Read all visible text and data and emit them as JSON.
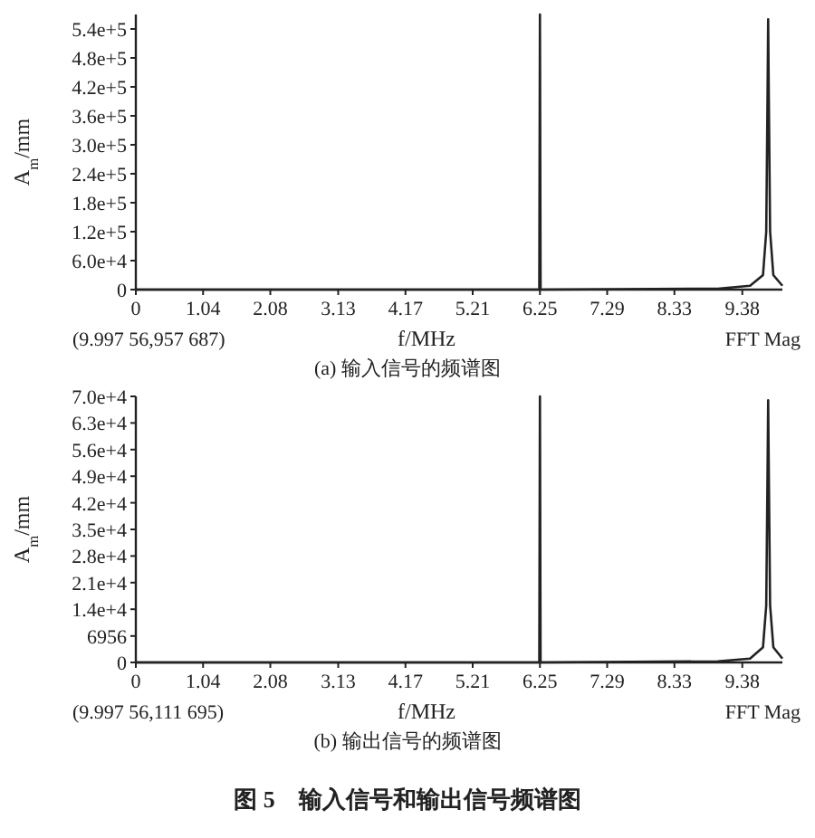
{
  "chart_data": [
    {
      "type": "line",
      "title": "(a) 输入信号的频谱图",
      "xlabel": "f/MHz",
      "ylabel": "A$_{m}$/mm",
      "annotations": [
        "(9.997 56,957 687)",
        "FFT Mag"
      ],
      "xlim": [
        0,
        10
      ],
      "xticks": [
        0,
        1.04,
        2.08,
        3.13,
        4.17,
        5.21,
        6.25,
        7.29,
        8.33,
        9.38
      ],
      "ylim": [
        0,
        570000
      ],
      "yticks": [
        {
          "value": 0,
          "label": "0"
        },
        {
          "value": 60000,
          "label": "6.0e+4"
        },
        {
          "value": 120000,
          "label": "1.2e+5"
        },
        {
          "value": 180000,
          "label": "1.8e+5"
        },
        {
          "value": 240000,
          "label": "2.4e+5"
        },
        {
          "value": 300000,
          "label": "3.0e+5"
        },
        {
          "value": 360000,
          "label": "3.6e+5"
        },
        {
          "value": 420000,
          "label": "4.2e+5"
        },
        {
          "value": 480000,
          "label": "4.8e+5"
        },
        {
          "value": 540000,
          "label": "5.4e+5"
        }
      ],
      "grid": false,
      "marker": "none",
      "line_style": "solid",
      "series": [
        {
          "color": "#222222",
          "x": [
            0,
            3,
            6.24,
            6.25,
            6.26,
            9,
            9.5,
            9.7,
            9.75,
            9.77,
            9.78,
            9.79,
            9.81,
            9.86,
            10
          ],
          "values": [
            0,
            0,
            0,
            570000,
            0,
            2000,
            8000,
            30000,
            120000,
            400000,
            560000,
            400000,
            120000,
            30000,
            8000
          ]
        }
      ]
    },
    {
      "type": "line",
      "title": "(b) 输出信号的频谱图",
      "xlabel": "f/MHz",
      "ylabel": "A$_{m}$/mm",
      "annotations": [
        "(9.997 56,111 695)",
        "FFT Mag",
        "图 5　输入信号和输出信号频谱图"
      ],
      "xlim": [
        0,
        10
      ],
      "xticks": [
        0,
        1.04,
        2.08,
        3.13,
        4.17,
        5.21,
        6.25,
        7.29,
        8.33,
        9.38
      ],
      "ylim": [
        0,
        70000
      ],
      "yticks": [
        {
          "value": 0,
          "label": "0"
        },
        6956,
        {
          "value": 14000,
          "label": "1.4e+4"
        },
        {
          "value": 21000,
          "label": "2.1e+4"
        },
        {
          "value": 28000,
          "label": "2.8e+4"
        },
        {
          "value": 35000,
          "label": "3.5e+4"
        },
        {
          "value": 42000,
          "label": "4.2e+4"
        },
        {
          "value": 49000,
          "label": "4.9e+4"
        },
        {
          "value": 56000,
          "label": "5.6e+4"
        },
        {
          "value": 63000,
          "label": "6.3e+4"
        },
        {
          "value": 70000,
          "label": "7.0e+4"
        }
      ],
      "grid": false,
      "marker": "none",
      "line_style": "solid",
      "series": [
        {
          "color": "#222222",
          "x": [
            0,
            3,
            6.24,
            6.25,
            6.26,
            9,
            9.5,
            9.7,
            9.75,
            9.77,
            9.78,
            9.79,
            9.81,
            9.86,
            10
          ],
          "values": [
            0,
            0,
            0,
            70000,
            0,
            300,
            1000,
            4000,
            15000,
            50000,
            69000,
            50000,
            15000,
            4000,
            1000
          ]
        }
      ]
    }
  ]
}
